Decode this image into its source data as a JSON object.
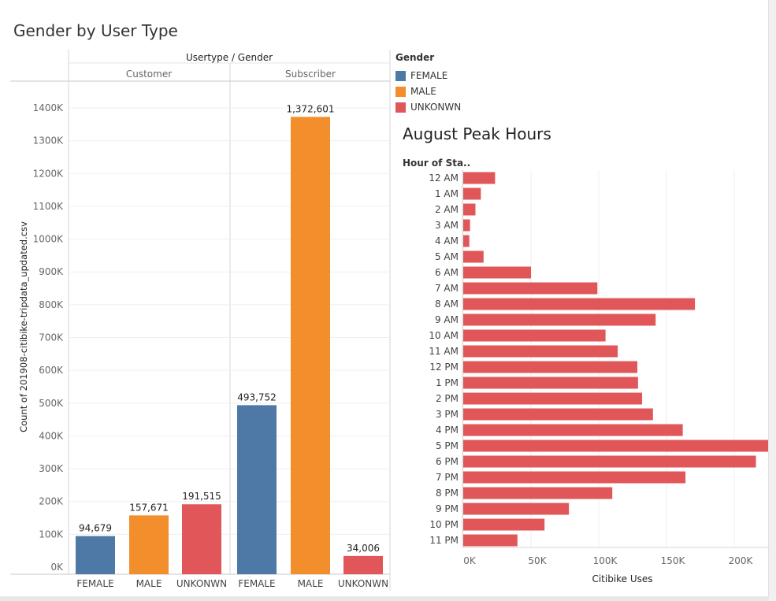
{
  "dashboard": {
    "main_title": "Gender by User Type",
    "peak_title": "August Peak Hours"
  },
  "legend": {
    "title": "Gender",
    "items": [
      {
        "label": "FEMALE",
        "color": "#4e79a7"
      },
      {
        "label": "MALE",
        "color": "#f28e2b"
      },
      {
        "label": "UNKONWN",
        "color": "#e15759"
      }
    ]
  },
  "chart_data": [
    {
      "type": "bar",
      "title": "Gender by User Type",
      "column_header": "Usertype  /  Gender",
      "ylabel": "Count of 201908-citibike-tripdata_updated.csv",
      "ylim": [
        0,
        1400000
      ],
      "yticks": [
        0,
        100000,
        200000,
        300000,
        400000,
        500000,
        600000,
        700000,
        800000,
        900000,
        1000000,
        1100000,
        1200000,
        1300000,
        1400000
      ],
      "ytick_labels": [
        "0K",
        "100K",
        "200K",
        "300K",
        "400K",
        "500K",
        "600K",
        "700K",
        "800K",
        "900K",
        "1000K",
        "1100K",
        "1200K",
        "1300K",
        "1400K"
      ],
      "groups": [
        {
          "name": "Customer",
          "bars": [
            {
              "category": "FEMALE",
              "value": 94679,
              "label": "94,679",
              "color": "#4e79a7"
            },
            {
              "category": "MALE",
              "value": 157671,
              "label": "157,671",
              "color": "#f28e2b"
            },
            {
              "category": "UNKONWN",
              "value": 191515,
              "label": "191,515",
              "color": "#e15759"
            }
          ]
        },
        {
          "name": "Subscriber",
          "bars": [
            {
              "category": "FEMALE",
              "value": 493752,
              "label": "493,752",
              "color": "#4e79a7"
            },
            {
              "category": "MALE",
              "value": 1372601,
              "label": "1,372,601",
              "color": "#f28e2b"
            },
            {
              "category": "UNKONWN",
              "value": 34006,
              "label": "34,006",
              "color": "#e15759"
            }
          ]
        }
      ]
    },
    {
      "type": "bar",
      "orientation": "horizontal",
      "title": "August Peak Hours",
      "row_header": "Hour of Sta..",
      "xlabel": "Citibike Uses",
      "xlim": [
        0,
        225000
      ],
      "xticks": [
        0,
        50000,
        100000,
        150000,
        200000
      ],
      "xtick_labels": [
        "0K",
        "50K",
        "100K",
        "150K",
        "200K"
      ],
      "color": "#e15759",
      "categories": [
        "12 AM",
        "1 AM",
        "2 AM",
        "3 AM",
        "4 AM",
        "5 AM",
        "6 AM",
        "7 AM",
        "8 AM",
        "9 AM",
        "10 AM",
        "11 AM",
        "12 PM",
        "1 PM",
        "2 PM",
        "3 PM",
        "4 PM",
        "5 PM",
        "6 PM",
        "7 PM",
        "8 PM",
        "9 PM",
        "10 PM",
        "11 PM"
      ],
      "values": [
        23500,
        13000,
        9000,
        5000,
        4500,
        15000,
        50000,
        99000,
        171000,
        142000,
        105000,
        114000,
        128500,
        129000,
        132000,
        140000,
        162000,
        226000,
        216000,
        164000,
        110000,
        78000,
        60000,
        40000
      ]
    }
  ]
}
